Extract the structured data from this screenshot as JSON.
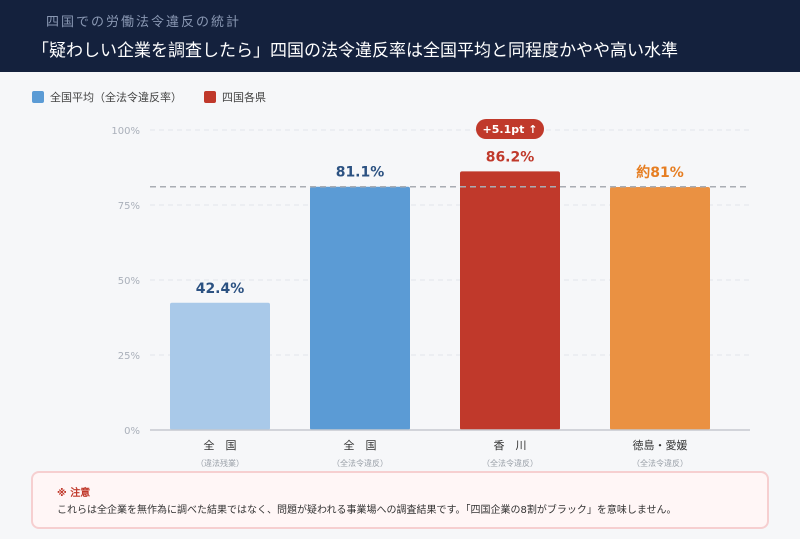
{
  "header": {
    "subtitle": "四国での労働法令違反の統計",
    "title": "「疑わしい企業を調査したら」四国の法令違反率は全国平均と同程度かやや高い水準"
  },
  "legend": [
    {
      "label": "全国平均（全法令違反率）",
      "color": "#5b9bd5"
    },
    {
      "label": "四国各県",
      "color": "#c0392b"
    }
  ],
  "chart_data": {
    "type": "bar",
    "categories": [
      "全　国",
      "全　国",
      "香　川",
      "徳島・愛媛"
    ],
    "sublabels": [
      "（違法残業）",
      "（全法令違反）",
      "（全法令違反）",
      "（全法令違反）"
    ],
    "values": [
      42.4,
      81.1,
      86.2,
      81
    ],
    "value_labels": [
      "42.4%",
      "81.1%",
      "86.2%",
      "約81%"
    ],
    "colors": [
      "#a9c9e9",
      "#5b9bd5",
      "#c0392b",
      "#ea9142"
    ],
    "label_colors": [
      "#2c5282",
      "#2c5282",
      "#c0392b",
      "#e67e22"
    ],
    "ylim": [
      0,
      100
    ],
    "yticks": [
      0,
      25,
      50,
      75,
      100
    ],
    "ytick_labels": [
      "0%",
      "25%",
      "50%",
      "75%",
      "100%"
    ],
    "reference_line": 81.1,
    "badge": {
      "label": "+5.1pt ↑",
      "category_index": 2,
      "color": "#c0392b"
    },
    "grid": true
  },
  "note": {
    "title": "※ 注意",
    "text": "これらは全企業を無作為に調べた結果ではなく、問題が疑われる事業場への調査結果です。「四国企業の8割がブラック」を意味しません。"
  }
}
